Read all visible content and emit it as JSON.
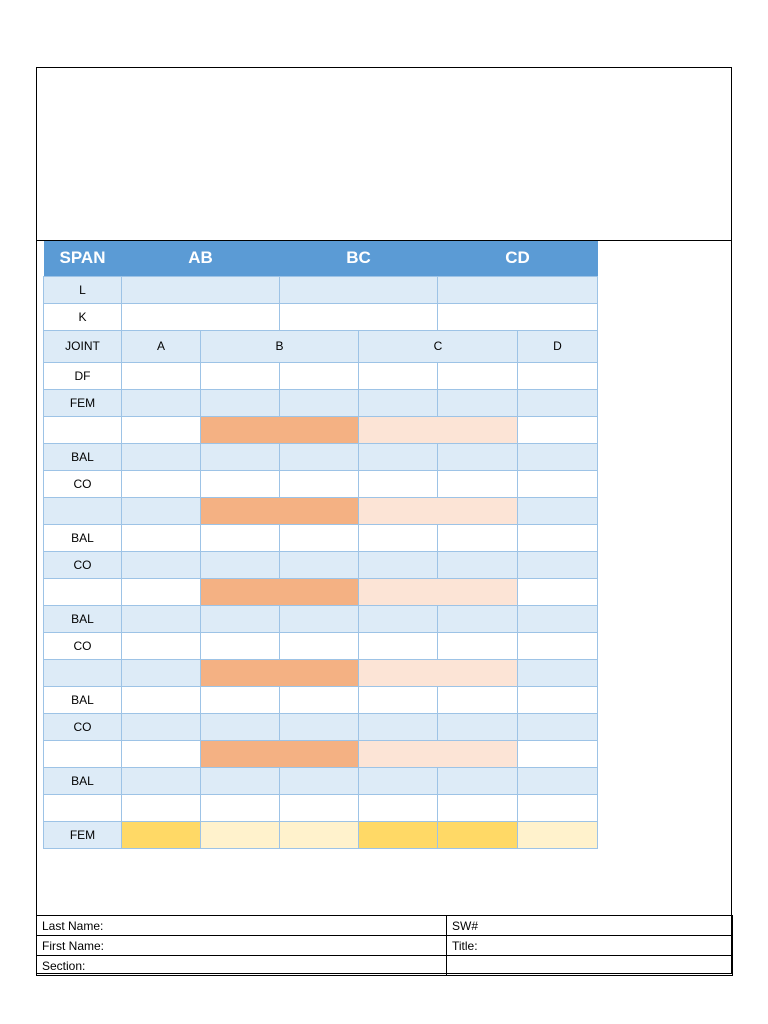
{
  "table": {
    "span_label": "SPAN",
    "spans": [
      "AB",
      "BC",
      "CD"
    ],
    "l_label": "L",
    "k_label": "K",
    "joint_label": "JOINT",
    "joints": [
      "A",
      "B",
      "C",
      "D"
    ],
    "df_label": "DF",
    "fem_label": "FEM",
    "bal_label": "BAL",
    "co_label": "CO",
    "fem_final_label": "FEM"
  },
  "footer": {
    "last_name_label": "Last Name:",
    "first_name_label": "First Name:",
    "section_label": "Section:",
    "sw_label": "SW#",
    "title_label": "Title:"
  },
  "colors": {
    "header_blue": "#5b9bd5",
    "row_light_blue": "#ddebf7",
    "cell_border": "#9dc3e6",
    "dark_orange": "#f4b183",
    "light_orange": "#fce4d6",
    "dark_yellow": "#ffd966",
    "light_yellow": "#fff2cc"
  }
}
